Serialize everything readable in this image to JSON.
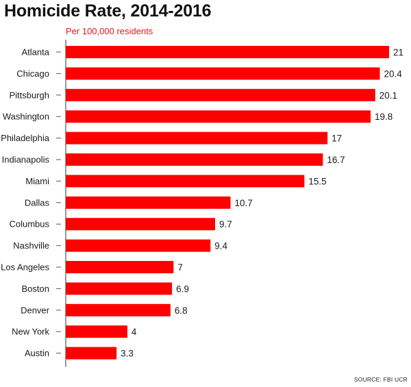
{
  "chart_data": {
    "type": "bar",
    "orientation": "horizontal",
    "title": "Homicide Rate, 2014-2016",
    "subtitle": "Per 100,000 residents",
    "source": "SOURCE: FBI UCR",
    "categories": [
      "Atlanta",
      "Chicago",
      "Pittsburgh",
      "Washington",
      "Philadelphia",
      "Indianapolis",
      "Miami",
      "Dallas",
      "Columbus",
      "Nashville",
      "Los Angeles",
      "Boston",
      "Denver",
      "New York",
      "Austin"
    ],
    "values": [
      21,
      20.4,
      20.1,
      19.8,
      17,
      16.7,
      15.5,
      10.7,
      9.7,
      9.4,
      7,
      6.9,
      6.8,
      4,
      3.3
    ],
    "value_labels": [
      "21",
      "20.4",
      "20.1",
      "19.8",
      "17",
      "16.7",
      "15.5",
      "10.7",
      "9.7",
      "9.4",
      "7",
      "6.9",
      "6.8",
      "4",
      "3.3"
    ],
    "xlim": [
      0,
      21
    ],
    "grid": false,
    "data_labels": true,
    "bar_color": "#ff0000"
  }
}
